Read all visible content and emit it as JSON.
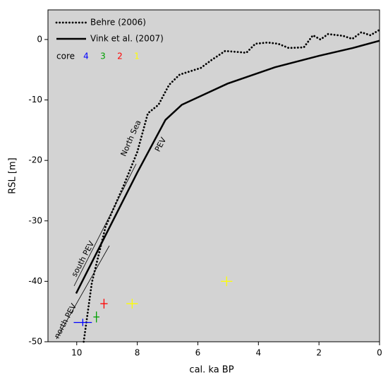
{
  "chart_data": {
    "type": "line",
    "xlabel": "cal. ka BP",
    "ylabel": "RSL [m]",
    "xlim": [
      10.95,
      0
    ],
    "ylim": [
      -50,
      4.9
    ],
    "xticks": [
      10,
      8,
      6,
      4,
      2,
      0
    ],
    "yticks": [
      0,
      -10,
      -20,
      -30,
      -40,
      -50
    ],
    "background": "#d3d3d3",
    "series": [
      {
        "name": "Behre (2006)",
        "color": "#000000",
        "style": "dotted",
        "x": [
          9.77,
          9.5,
          9.05,
          8.47,
          8.0,
          7.65,
          7.3,
          6.95,
          6.6,
          5.9,
          5.55,
          5.1,
          4.6,
          4.4,
          4.1,
          3.7,
          3.35,
          3.0,
          2.5,
          2.2,
          1.95,
          1.7,
          1.2,
          0.9,
          0.6,
          0.3,
          0.0
        ],
        "values": [
          -50,
          -40.2,
          -31,
          -24.4,
          -18.6,
          -12.2,
          -10.8,
          -7.5,
          -5.8,
          -4.7,
          -3.4,
          -1.9,
          -2.1,
          -2.2,
          -0.7,
          -0.5,
          -0.7,
          -1.4,
          -1.3,
          0.7,
          0,
          0.9,
          0.6,
          0.1,
          1.2,
          0.7,
          1.6
        ]
      },
      {
        "name": "Vink et al. (2007)",
        "color": "#000000",
        "style": "solid",
        "x": [
          10.02,
          8.0,
          7.07,
          6.53,
          5.02,
          3.46,
          2.0,
          0.88,
          0.0
        ],
        "values": [
          -42,
          -22,
          -13.3,
          -10.8,
          -7.3,
          -4.6,
          -2.7,
          -1.4,
          -0.2
        ]
      }
    ],
    "cores": {
      "label": "core",
      "series": [
        {
          "name": "4",
          "color": "#0000ff",
          "x": [
            9.8
          ],
          "values": [
            -46.8
          ],
          "xerr": [
            0.3
          ],
          "yerr": [
            0.6
          ]
        },
        {
          "name": "3",
          "color": "#00a000",
          "x": [
            9.35
          ],
          "values": [
            -45.9
          ],
          "xerr": [
            0.1
          ],
          "yerr": [
            0.9
          ]
        },
        {
          "name": "2",
          "color": "#ff0000",
          "x": [
            9.1
          ],
          "values": [
            -43.7
          ],
          "xerr": [
            0.12
          ],
          "yerr": [
            0.8
          ]
        },
        {
          "name": "1",
          "color": "#ffff00",
          "x": [
            8.17,
            5.05
          ],
          "values": [
            -43.7,
            -40
          ],
          "xerr": [
            0.19,
            0.19
          ],
          "yerr": [
            0.8,
            0.8
          ]
        }
      ]
    },
    "annotations": [
      "North Sea",
      "PEV",
      "south PEV",
      "north PEV"
    ]
  }
}
